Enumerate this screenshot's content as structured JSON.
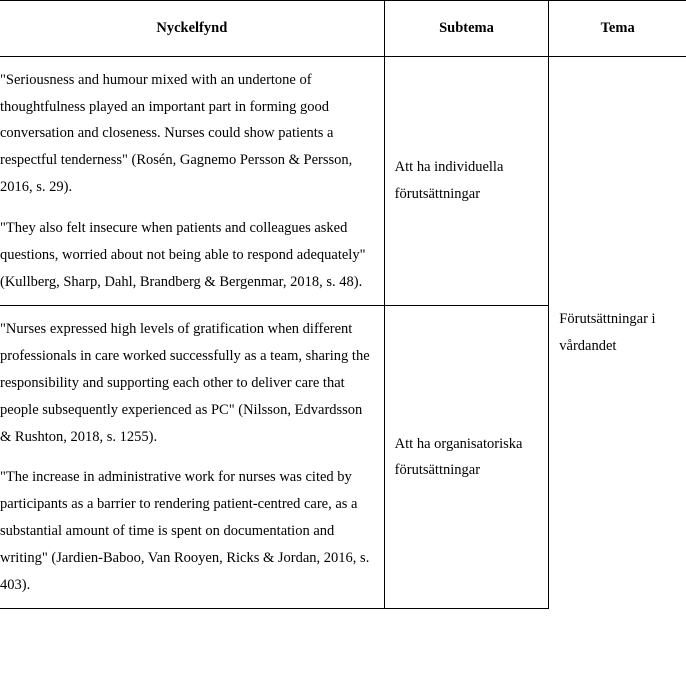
{
  "headers": {
    "nyckelfynd": "Nyckelfynd",
    "subtema": "Subtema",
    "tema": "Tema"
  },
  "row1": {
    "quote1": "\"Seriousness and humour mixed with an undertone of thoughtfulness played an important part in forming good conversation and closeness. Nurses could show patients a respectful tenderness\" (Rosén, Gagnemo Persson & Persson, 2016, s. 29).",
    "quote2": "\"They also felt insecure when patients and colleagues asked questions, worried about not being able to respond adequately\" (Kullberg, Sharp, Dahl, Brandberg & Bergenmar, 2018, s. 48).",
    "subtema": "Att ha individuella förutsättningar"
  },
  "row2": {
    "quote1": "\"Nurses expressed high levels of gratification when different professionals in care worked successfully as a team, sharing the responsibility and supporting each other to deliver care that people subsequently experienced as PC\" (Nilsson, Edvardsson & Rushton, 2018, s. 1255).",
    "quote2": "\"The increase in administrative work for nurses was cited by participants as a barrier to rendering patient-centred care, as a substantial amount of time is spent on documentation and writing\" (Jardien-Baboo, Van Rooyen, Ricks & Jordan, 2016, s. 403).",
    "subtema": "Att ha organisatoriska förutsättningar"
  },
  "tema": "Förutsättningar i vårdandet",
  "style": {
    "font_family": "Georgia, serif",
    "font_size_pt": 11,
    "line_height": 1.85,
    "border_color": "#000000",
    "background": "#ffffff",
    "text_color": "#000000",
    "col_widths_pct": [
      56,
      24,
      20
    ]
  }
}
